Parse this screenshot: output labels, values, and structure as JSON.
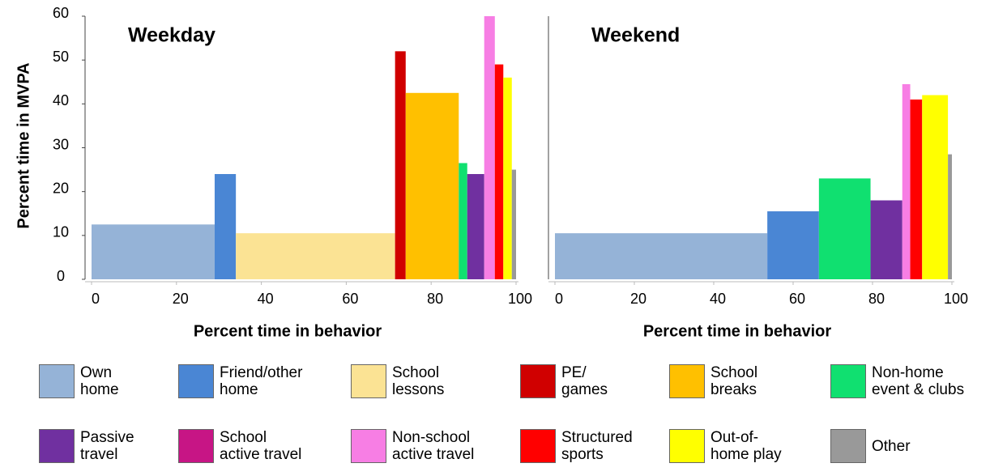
{
  "chart_data": {
    "type": "variable-width-bar",
    "y_label": "Percent time in MVPA",
    "x_label": "Percent time in behavior",
    "panels": [
      {
        "title": "Weekday",
        "xlim": [
          0,
          100
        ],
        "xticks": [
          0,
          20,
          40,
          60,
          80,
          100
        ],
        "ylim": [
          0,
          60
        ],
        "yticks": [
          0,
          10,
          20,
          30,
          40,
          50,
          60
        ]
      },
      {
        "title": "Weekend",
        "xlim": [
          0,
          100
        ],
        "xticks": [
          0,
          20,
          40,
          60,
          80,
          100
        ],
        "ylim": [
          0,
          60
        ]
      }
    ],
    "series": [
      {
        "name": "Own\nhome",
        "color": "#95b3d7",
        "widths": [
          29,
          53.5
        ],
        "values": [
          12.5,
          10.5
        ]
      },
      {
        "name": "Friend/other\nhome",
        "color": "#4a86d4",
        "widths": [
          5,
          13
        ],
        "values": [
          24,
          15.5
        ]
      },
      {
        "name": "School\nlessons",
        "color": "#fbe394",
        "widths": [
          37.5,
          null
        ],
        "values": [
          10.5,
          null
        ]
      },
      {
        "name": "PE/\ngames",
        "color": "#d00000",
        "widths": [
          2.5,
          null
        ],
        "values": [
          52,
          null
        ]
      },
      {
        "name": "School\nbreaks",
        "color": "#ffc000",
        "widths": [
          12.5,
          null
        ],
        "values": [
          42.5,
          null
        ]
      },
      {
        "name": "Non-home\nevent & clubs",
        "color": "#10e070",
        "widths": [
          2,
          13
        ],
        "values": [
          26.5,
          23
        ]
      },
      {
        "name": "Passive\ntravel",
        "color": "#7030a0",
        "widths": [
          4,
          8
        ],
        "values": [
          24,
          18
        ]
      },
      {
        "name": "School\nactive travel",
        "color": "#c71585",
        "widths": [
          null,
          null
        ],
        "values": [
          null,
          null
        ]
      },
      {
        "name": "Non-school\nactive travel",
        "color": "#f77ee4",
        "widths": [
          2.5,
          2
        ],
        "values": [
          60,
          44.5
        ]
      },
      {
        "name": "Structured\nsports",
        "color": "#ff0000",
        "widths": [
          2,
          3
        ],
        "values": [
          49,
          41
        ]
      },
      {
        "name": "Out-of-\nhome play",
        "color": "#ffff00",
        "widths": [
          2,
          6.5
        ],
        "values": [
          46,
          42
        ]
      },
      {
        "name": "Other",
        "color": "#999999",
        "widths": [
          1,
          1
        ],
        "values": [
          25,
          28.5
        ]
      }
    ]
  }
}
